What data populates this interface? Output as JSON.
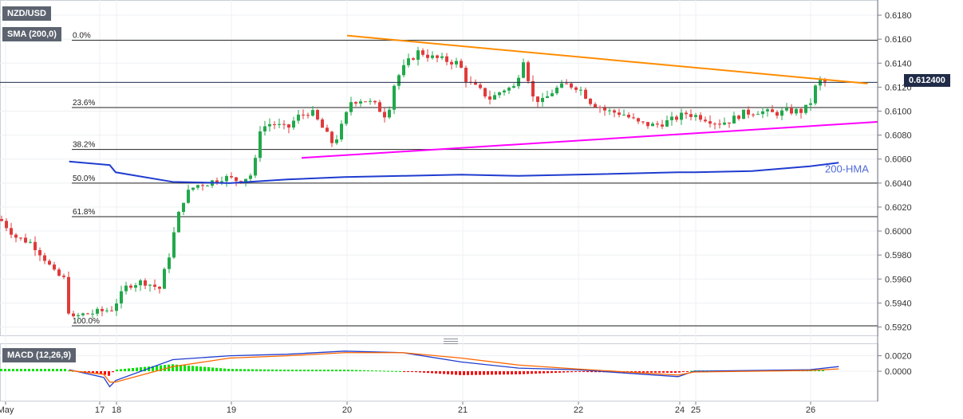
{
  "header": {
    "symbol": "NZD/USD",
    "indicator_legend": "SMA (200,0)",
    "macd_legend": "MACD (12,26,9)",
    "last_price": "0.612400"
  },
  "annotations": {
    "hma_label": "200-HMA"
  },
  "colors": {
    "bull": "#22a84b",
    "bear": "#e03b3b",
    "resistance": "#ff8c00",
    "support": "#ff00ff",
    "hma": "#1f3ccf",
    "macd": "#1f3ccf",
    "signal": "#ff6600",
    "hist_pos": "#00e000",
    "hist_neg": "#ff0000",
    "fib": "#222222",
    "last_price_line": "#1f2b47"
  },
  "chart_data": [
    {
      "type": "candlestick",
      "title": "NZD/USD",
      "ylim": [
        0.5915,
        0.619
      ],
      "x_ticks": [
        "May",
        "17",
        "18",
        "19",
        "20",
        "21",
        "22",
        "24",
        "25",
        "26"
      ],
      "y_ticks": [
        "0.5920",
        "0.5940",
        "0.5960",
        "0.5980",
        "0.6000",
        "0.6020",
        "0.6040",
        "0.6060",
        "0.6080",
        "0.6100",
        "0.6120",
        "0.6140",
        "0.6160",
        "0.6180"
      ],
      "fibonacci": [
        {
          "label": "0.0%",
          "value": 0.6159
        },
        {
          "label": "23.6%",
          "value": 0.6103
        },
        {
          "label": "38.2%",
          "value": 0.6068
        },
        {
          "label": "50.0%",
          "value": 0.604
        },
        {
          "label": "61.8%",
          "value": 0.6012
        },
        {
          "label": "100.0%",
          "value": 0.5921
        }
      ],
      "last_price": 0.6124,
      "trendlines": [
        {
          "name": "resistance",
          "start": [
            "20 00:30",
            0.6163
          ],
          "end": [
            "26 12:00",
            0.6123
          ]
        },
        {
          "name": "support",
          "start": [
            "19 15:00",
            0.6061
          ],
          "end": [
            "26 14:00",
            0.6091
          ]
        }
      ],
      "series": [
        {
          "name": "200-HMA",
          "type": "line",
          "x": [
            "16 16:00",
            "17 12:00",
            "18 00:00",
            "18 12:00",
            "19 00:00",
            "19 12:00",
            "20 00:00",
            "20 12:00",
            "21 00:00",
            "21 12:00",
            "22 00:00",
            "24 00:00",
            "25 00:00",
            "25 12:00",
            "26 00:00",
            "26 06:00"
          ],
          "y": [
            0.6058,
            0.6055,
            0.6049,
            0.6041,
            0.604,
            0.6043,
            0.6045,
            0.6046,
            0.6047,
            0.6046,
            0.6047,
            0.6049,
            0.6049,
            0.605,
            0.6054,
            0.6057
          ]
        }
      ]
    },
    {
      "type": "line",
      "title": "MACD (12,26,9)",
      "ylim": [
        -0.0035,
        0.0033
      ],
      "y_ticks": [
        "0.0020",
        "0.0000"
      ],
      "series": [
        {
          "name": "MACD",
          "x": [
            "16 16:00",
            "17 00:00",
            "17 12:00",
            "18 00:00",
            "18 12:00",
            "19 00:00",
            "19 12:00",
            "20 00:00",
            "20 12:00",
            "21 00:00",
            "21 12:00",
            "22 00:00",
            "24 00:00",
            "25 00:00",
            "26 00:00",
            "26 06:00"
          ],
          "y": [
            0.0002,
            -0.0008,
            -0.002,
            -0.0012,
            0.0015,
            0.002,
            0.0022,
            0.0026,
            0.0024,
            0.0012,
            0.0004,
            0.0002,
            -0.0007,
            0.0,
            0.0002,
            0.0006
          ]
        },
        {
          "name": "Signal",
          "x": [
            "16 16:00",
            "17 00:00",
            "17 12:00",
            "18 00:00",
            "18 12:00",
            "19 00:00",
            "19 12:00",
            "20 00:00",
            "20 12:00",
            "21 00:00",
            "21 12:00",
            "22 00:00",
            "24 00:00",
            "25 00:00",
            "26 00:00",
            "26 06:00"
          ],
          "y": [
            0.0001,
            -0.0004,
            -0.0014,
            -0.0014,
            0.0006,
            0.0017,
            0.002,
            0.0024,
            0.0024,
            0.0017,
            0.0008,
            0.0003,
            -0.0005,
            -0.0001,
            0.0001,
            0.0003
          ]
        },
        {
          "name": "Histogram",
          "type": "bar",
          "x": [
            "16 16:00",
            "17 00:00",
            "17 12:00",
            "18 00:00",
            "18 12:00",
            "19 00:00",
            "19 12:00",
            "20 00:00",
            "20 12:00",
            "21 00:00",
            "21 12:00",
            "22 00:00",
            "24 00:00",
            "25 00:00",
            "26 00:00",
            "26 06:00"
          ],
          "y": [
            0.0001,
            -0.0004,
            -0.0006,
            0.0002,
            0.0009,
            0.0003,
            0.0002,
            0.0002,
            0.0,
            -0.0005,
            -0.0004,
            -0.0001,
            -0.0002,
            0.0001,
            0.0001,
            0.0003
          ]
        }
      ]
    }
  ]
}
